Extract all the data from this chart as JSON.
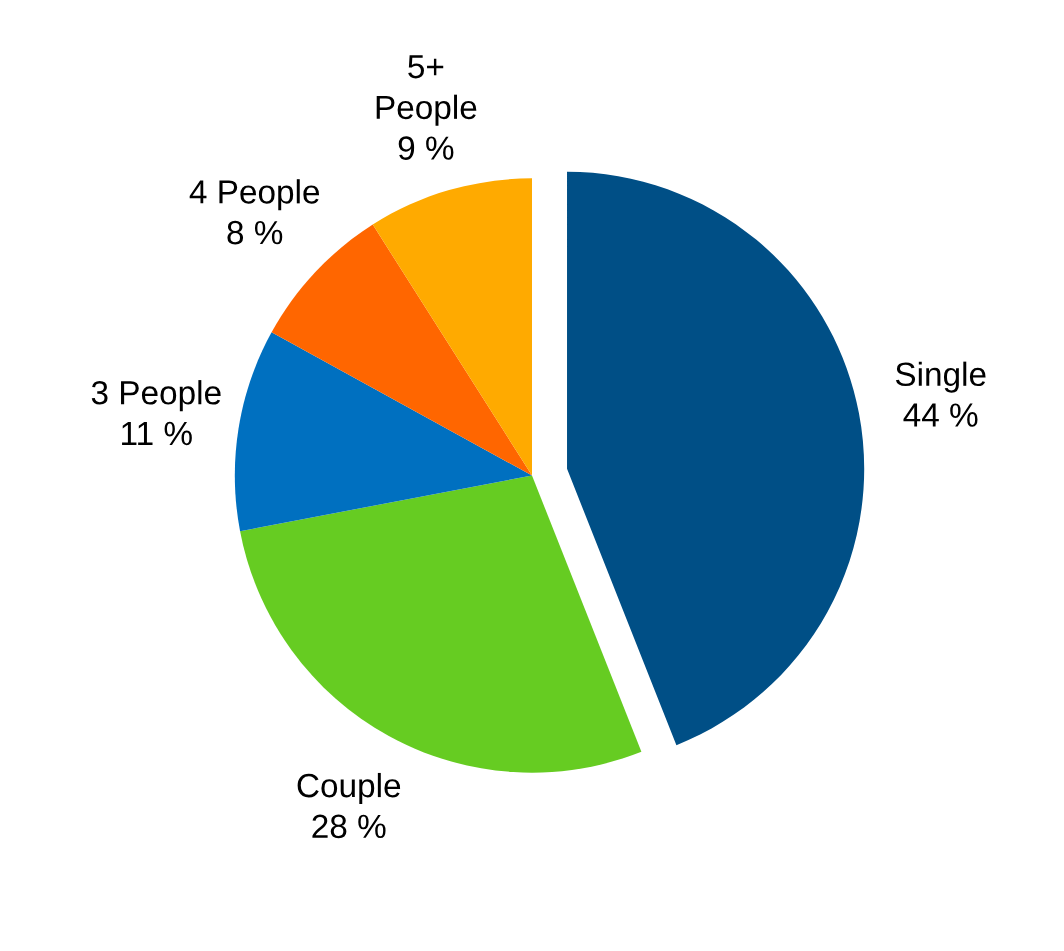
{
  "chart_data": {
    "type": "pie",
    "categories": [
      "Single",
      "Couple",
      "3 People",
      "4 People",
      "5+\nPeople"
    ],
    "values": [
      44,
      28,
      11,
      8,
      9
    ],
    "value_labels": [
      "44 %",
      "28 %",
      "11 %",
      "8 %",
      "9 %"
    ],
    "colors": [
      "#004f86",
      "#66cc22",
      "#0070c0",
      "#ff6600",
      "#ffaa00"
    ]
  }
}
